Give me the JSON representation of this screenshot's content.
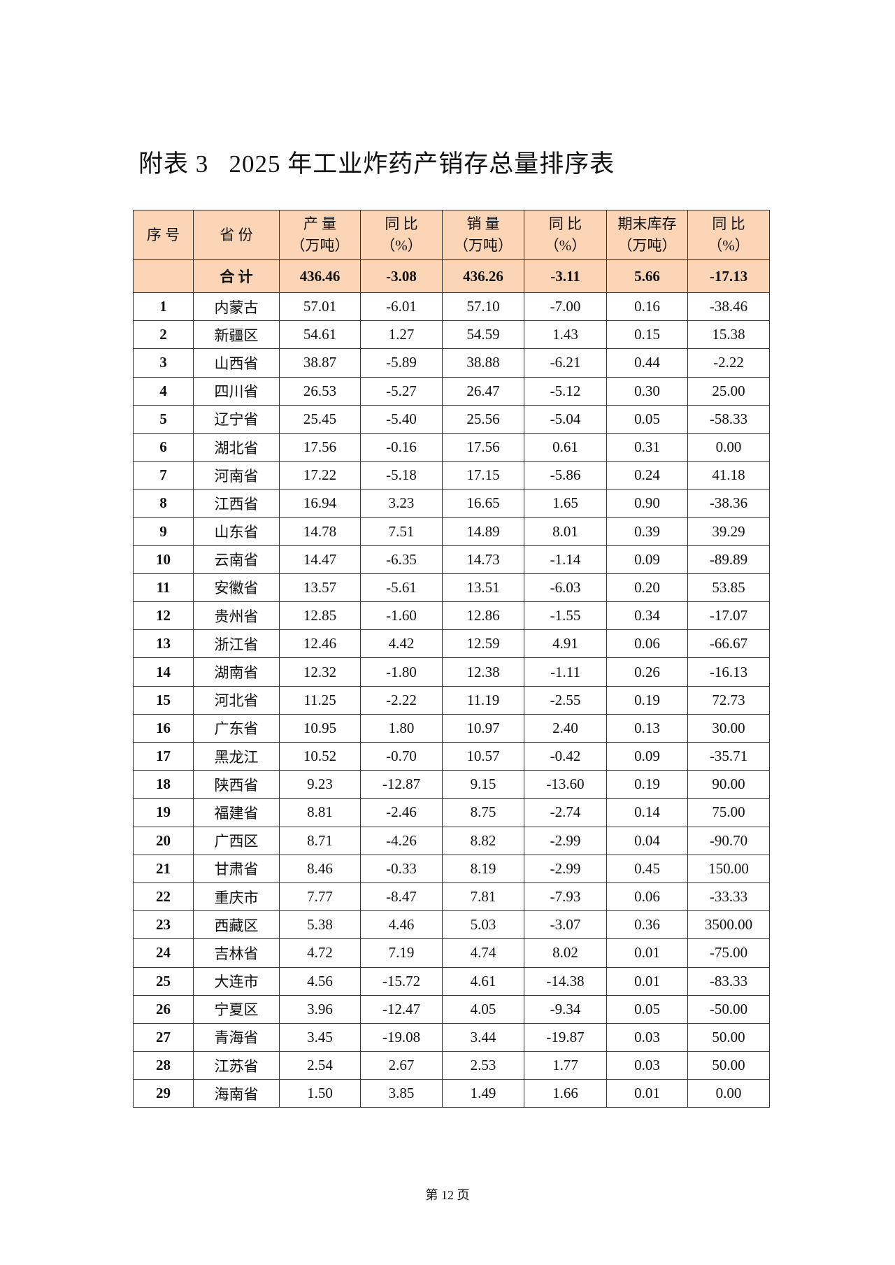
{
  "title": "附表 3   2025 年工业炸药产销存总量排序表",
  "headers": [
    {
      "l1": "序 号",
      "l2": ""
    },
    {
      "l1": "省 份",
      "l2": ""
    },
    {
      "l1": "产 量",
      "l2": "（万吨）"
    },
    {
      "l1": "同 比",
      "l2": "（%）"
    },
    {
      "l1": "销 量",
      "l2": "（万吨）"
    },
    {
      "l1": "同 比",
      "l2": "（%）"
    },
    {
      "l1": "期末库存",
      "l2": "（万吨）"
    },
    {
      "l1": "同 比",
      "l2": "（%）"
    }
  ],
  "total": {
    "label": "合 计",
    "values": [
      "436.46",
      "-3.08",
      "436.26",
      "-3.11",
      "5.66",
      "-17.13"
    ]
  },
  "rows": [
    [
      "1",
      "内蒙古",
      "57.01",
      "-6.01",
      "57.10",
      "-7.00",
      "0.16",
      "-38.46"
    ],
    [
      "2",
      "新疆区",
      "54.61",
      "1.27",
      "54.59",
      "1.43",
      "0.15",
      "15.38"
    ],
    [
      "3",
      "山西省",
      "38.87",
      "-5.89",
      "38.88",
      "-6.21",
      "0.44",
      "-2.22"
    ],
    [
      "4",
      "四川省",
      "26.53",
      "-5.27",
      "26.47",
      "-5.12",
      "0.30",
      "25.00"
    ],
    [
      "5",
      "辽宁省",
      "25.45",
      "-5.40",
      "25.56",
      "-5.04",
      "0.05",
      "-58.33"
    ],
    [
      "6",
      "湖北省",
      "17.56",
      "-0.16",
      "17.56",
      "0.61",
      "0.31",
      "0.00"
    ],
    [
      "7",
      "河南省",
      "17.22",
      "-5.18",
      "17.15",
      "-5.86",
      "0.24",
      "41.18"
    ],
    [
      "8",
      "江西省",
      "16.94",
      "3.23",
      "16.65",
      "1.65",
      "0.90",
      "-38.36"
    ],
    [
      "9",
      "山东省",
      "14.78",
      "7.51",
      "14.89",
      "8.01",
      "0.39",
      "39.29"
    ],
    [
      "10",
      "云南省",
      "14.47",
      "-6.35",
      "14.73",
      "-1.14",
      "0.09",
      "-89.89"
    ],
    [
      "11",
      "安徽省",
      "13.57",
      "-5.61",
      "13.51",
      "-6.03",
      "0.20",
      "53.85"
    ],
    [
      "12",
      "贵州省",
      "12.85",
      "-1.60",
      "12.86",
      "-1.55",
      "0.34",
      "-17.07"
    ],
    [
      "13",
      "浙江省",
      "12.46",
      "4.42",
      "12.59",
      "4.91",
      "0.06",
      "-66.67"
    ],
    [
      "14",
      "湖南省",
      "12.32",
      "-1.80",
      "12.38",
      "-1.11",
      "0.26",
      "-16.13"
    ],
    [
      "15",
      "河北省",
      "11.25",
      "-2.22",
      "11.19",
      "-2.55",
      "0.19",
      "72.73"
    ],
    [
      "16",
      "广东省",
      "10.95",
      "1.80",
      "10.97",
      "2.40",
      "0.13",
      "30.00"
    ],
    [
      "17",
      "黑龙江",
      "10.52",
      "-0.70",
      "10.57",
      "-0.42",
      "0.09",
      "-35.71"
    ],
    [
      "18",
      "陕西省",
      "9.23",
      "-12.87",
      "9.15",
      "-13.60",
      "0.19",
      "90.00"
    ],
    [
      "19",
      "福建省",
      "8.81",
      "-2.46",
      "8.75",
      "-2.74",
      "0.14",
      "75.00"
    ],
    [
      "20",
      "广西区",
      "8.71",
      "-4.26",
      "8.82",
      "-2.99",
      "0.04",
      "-90.70"
    ],
    [
      "21",
      "甘肃省",
      "8.46",
      "-0.33",
      "8.19",
      "-2.99",
      "0.45",
      "150.00"
    ],
    [
      "22",
      "重庆市",
      "7.77",
      "-8.47",
      "7.81",
      "-7.93",
      "0.06",
      "-33.33"
    ],
    [
      "23",
      "西藏区",
      "5.38",
      "4.46",
      "5.03",
      "-3.07",
      "0.36",
      "3500.00"
    ],
    [
      "24",
      "吉林省",
      "4.72",
      "7.19",
      "4.74",
      "8.02",
      "0.01",
      "-75.00"
    ],
    [
      "25",
      "大连市",
      "4.56",
      "-15.72",
      "4.61",
      "-14.38",
      "0.01",
      "-83.33"
    ],
    [
      "26",
      "宁夏区",
      "3.96",
      "-12.47",
      "4.05",
      "-9.34",
      "0.05",
      "-50.00"
    ],
    [
      "27",
      "青海省",
      "3.45",
      "-19.08",
      "3.44",
      "-19.87",
      "0.03",
      "50.00"
    ],
    [
      "28",
      "江苏省",
      "2.54",
      "2.67",
      "2.53",
      "1.77",
      "0.03",
      "50.00"
    ],
    [
      "29",
      "海南省",
      "1.50",
      "3.85",
      "1.49",
      "1.66",
      "0.01",
      "0.00"
    ]
  ],
  "colors": {
    "header_bg": "#fbd5b5",
    "border": "#333333"
  },
  "footer": "第 12 页"
}
